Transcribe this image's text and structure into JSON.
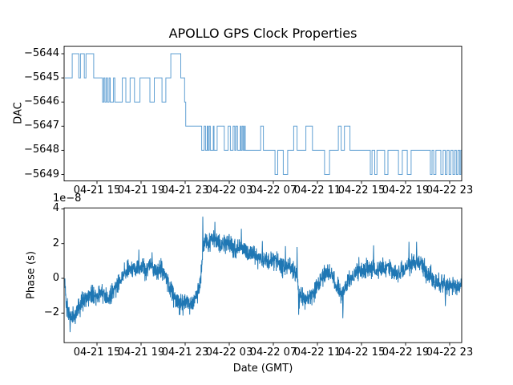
{
  "figure": {
    "background": "#ffffff",
    "frame_color": "#000000",
    "text_color": "#000000"
  },
  "chart_data": [
    {
      "type": "line",
      "subplot": "top",
      "title": "APOLLO GPS Clock Properties",
      "ylabel": "DAC",
      "drawstyle": "steps-post",
      "line_color": "#61a0d3",
      "ylim": [
        -5649.28,
        -5643.68
      ],
      "yticks": [
        -5644,
        -5645,
        -5646,
        -5647,
        -5648,
        -5649
      ],
      "ytick_labels": [
        "−5644",
        "−5645",
        "−5646",
        "−5647",
        "−5648",
        "−5649"
      ],
      "xtick_labels": [
        "04-21 15",
        "04-21 19",
        "04-21 23",
        "04-22 03",
        "04-22 07",
        "04-22 11",
        "04-22 15",
        "04-22 19",
        "04-22 23"
      ],
      "xtick_hours": [
        3,
        7,
        11,
        15,
        19,
        23,
        27,
        31,
        35
      ],
      "xlim_hours": [
        0.09,
        36.09
      ],
      "steps": [
        [
          0.09,
          -5645
        ],
        [
          0.75,
          -5644
        ],
        [
          1.35,
          -5645
        ],
        [
          1.5,
          -5644
        ],
        [
          1.85,
          -5645
        ],
        [
          2.0,
          -5644
        ],
        [
          2.7,
          -5645
        ],
        [
          3.5,
          -5646
        ],
        [
          3.62,
          -5645
        ],
        [
          3.72,
          -5646
        ],
        [
          3.85,
          -5645
        ],
        [
          3.95,
          -5646
        ],
        [
          4.1,
          -5645
        ],
        [
          4.2,
          -5646
        ],
        [
          4.5,
          -5645
        ],
        [
          4.62,
          -5646
        ],
        [
          5.3,
          -5645
        ],
        [
          5.62,
          -5646
        ],
        [
          6.0,
          -5645
        ],
        [
          6.4,
          -5646
        ],
        [
          6.9,
          -5645
        ],
        [
          7.8,
          -5646
        ],
        [
          8.2,
          -5645
        ],
        [
          8.9,
          -5646
        ],
        [
          9.25,
          -5645
        ],
        [
          9.7,
          -5644
        ],
        [
          10.6,
          -5645
        ],
        [
          10.95,
          -5646
        ],
        [
          11.05,
          -5647
        ],
        [
          12.5,
          -5648
        ],
        [
          12.72,
          -5647
        ],
        [
          12.85,
          -5648
        ],
        [
          13.0,
          -5647
        ],
        [
          13.08,
          -5648
        ],
        [
          13.18,
          -5647
        ],
        [
          13.28,
          -5648
        ],
        [
          13.55,
          -5647
        ],
        [
          13.62,
          -5648
        ],
        [
          13.9,
          -5647
        ],
        [
          14.55,
          -5648
        ],
        [
          14.9,
          -5647
        ],
        [
          15.1,
          -5648
        ],
        [
          15.35,
          -5647
        ],
        [
          15.5,
          -5648
        ],
        [
          15.6,
          -5647
        ],
        [
          15.75,
          -5648
        ],
        [
          16.0,
          -5647
        ],
        [
          16.08,
          -5648
        ],
        [
          16.18,
          -5647
        ],
        [
          16.28,
          -5648
        ],
        [
          16.38,
          -5647
        ],
        [
          16.45,
          -5648
        ],
        [
          17.85,
          -5647
        ],
        [
          18.1,
          -5648
        ],
        [
          19.15,
          -5649
        ],
        [
          19.4,
          -5648
        ],
        [
          19.9,
          -5649
        ],
        [
          20.3,
          -5648
        ],
        [
          20.85,
          -5647
        ],
        [
          21.15,
          -5648
        ],
        [
          21.95,
          -5647
        ],
        [
          22.55,
          -5648
        ],
        [
          23.65,
          -5649
        ],
        [
          24.1,
          -5648
        ],
        [
          24.9,
          -5647
        ],
        [
          25.15,
          -5648
        ],
        [
          25.45,
          -5647
        ],
        [
          25.95,
          -5648
        ],
        [
          27.8,
          -5649
        ],
        [
          27.95,
          -5648
        ],
        [
          28.2,
          -5649
        ],
        [
          28.4,
          -5648
        ],
        [
          29.1,
          -5649
        ],
        [
          29.4,
          -5648
        ],
        [
          30.35,
          -5649
        ],
        [
          30.7,
          -5648
        ],
        [
          31.15,
          -5649
        ],
        [
          31.5,
          -5648
        ],
        [
          33.25,
          -5649
        ],
        [
          33.4,
          -5648
        ],
        [
          33.55,
          -5649
        ],
        [
          33.75,
          -5648
        ],
        [
          34.2,
          -5649
        ],
        [
          34.4,
          -5648
        ],
        [
          34.6,
          -5649
        ],
        [
          34.75,
          -5648
        ],
        [
          34.95,
          -5649
        ],
        [
          35.1,
          -5648
        ],
        [
          35.3,
          -5649
        ],
        [
          35.45,
          -5648
        ],
        [
          35.6,
          -5649
        ],
        [
          35.75,
          -5648
        ],
        [
          35.9,
          -5649
        ],
        [
          36.0,
          -5648
        ]
      ]
    },
    {
      "type": "line",
      "subplot": "bottom",
      "ylabel": "Phase (s)",
      "xlabel": "Date (GMT)",
      "offset_text": "1e−8",
      "line_color": "#1f77b4",
      "ylim": [
        -3.7,
        4.06
      ],
      "yticks": [
        4,
        2,
        0,
        -2
      ],
      "ytick_labels": [
        "4",
        "2",
        "0",
        "−2"
      ],
      "xtick_labels": [
        "04-21 15",
        "04-21 19",
        "04-21 23",
        "04-22 03",
        "04-22 07",
        "04-22 11",
        "04-22 15",
        "04-22 19",
        "04-22 23"
      ],
      "xtick_hours": [
        3,
        7,
        11,
        15,
        19,
        23,
        27,
        31,
        35
      ],
      "xlim_hours": [
        0.09,
        36.09
      ],
      "units": "1e-8 s",
      "noise_amplitude": 0.27,
      "mean_points": [
        [
          0.09,
          -0.25
        ],
        [
          0.2,
          -1.5
        ],
        [
          0.45,
          -2.0
        ],
        [
          0.6,
          -2.2
        ],
        [
          0.8,
          -2.1
        ],
        [
          1.0,
          -2.2
        ],
        [
          1.2,
          -1.8
        ],
        [
          1.5,
          -1.45
        ],
        [
          1.8,
          -1.2
        ],
        [
          2.1,
          -1.1
        ],
        [
          2.4,
          -0.95
        ],
        [
          2.7,
          -1.0
        ],
        [
          3.0,
          -1.05
        ],
        [
          3.3,
          -0.7
        ],
        [
          3.6,
          -0.95
        ],
        [
          3.9,
          -1.2
        ],
        [
          4.2,
          -1.05
        ],
        [
          4.5,
          -0.7
        ],
        [
          4.8,
          -0.4
        ],
        [
          5.1,
          -0.05
        ],
        [
          5.4,
          0.25
        ],
        [
          5.7,
          0.45
        ],
        [
          6.0,
          0.5
        ],
        [
          6.3,
          0.45
        ],
        [
          6.6,
          0.55
        ],
        [
          6.9,
          0.5
        ],
        [
          7.2,
          0.55
        ],
        [
          7.5,
          0.45
        ],
        [
          7.8,
          0.65
        ],
        [
          8.1,
          0.55
        ],
        [
          8.4,
          0.45
        ],
        [
          8.7,
          0.55
        ],
        [
          9.0,
          0.35
        ],
        [
          9.3,
          0.0
        ],
        [
          9.6,
          -0.5
        ],
        [
          9.9,
          -0.95
        ],
        [
          10.2,
          -1.3
        ],
        [
          10.5,
          -1.45
        ],
        [
          10.8,
          -1.4
        ],
        [
          11.1,
          -1.35
        ],
        [
          11.4,
          -1.5
        ],
        [
          11.7,
          -1.35
        ],
        [
          12.0,
          -1.15
        ],
        [
          12.2,
          -0.8
        ],
        [
          12.4,
          -0.15
        ],
        [
          12.55,
          1.0
        ],
        [
          12.7,
          2.1
        ],
        [
          12.9,
          2.25
        ],
        [
          13.1,
          2.0
        ],
        [
          13.3,
          2.2
        ],
        [
          13.5,
          2.25
        ],
        [
          13.7,
          2.35
        ],
        [
          13.9,
          2.15
        ],
        [
          14.1,
          2.0
        ],
        [
          14.4,
          1.9
        ],
        [
          14.7,
          2.1
        ],
        [
          15.0,
          2.0
        ],
        [
          15.3,
          1.85
        ],
        [
          15.6,
          1.7
        ],
        [
          15.9,
          1.85
        ],
        [
          16.2,
          1.7
        ],
        [
          16.5,
          1.55
        ],
        [
          16.8,
          1.4
        ],
        [
          17.1,
          1.5
        ],
        [
          17.4,
          1.3
        ],
        [
          17.7,
          1.15
        ],
        [
          18.0,
          1.0
        ],
        [
          18.3,
          1.1
        ],
        [
          18.6,
          0.95
        ],
        [
          18.9,
          1.0
        ],
        [
          19.2,
          1.05
        ],
        [
          19.5,
          0.85
        ],
        [
          19.8,
          0.7
        ],
        [
          20.1,
          0.65
        ],
        [
          20.4,
          0.75
        ],
        [
          20.7,
          0.55
        ],
        [
          21.0,
          0.4
        ],
        [
          21.2,
          0.0
        ],
        [
          21.35,
          -1.2
        ],
        [
          21.5,
          -1.0
        ],
        [
          21.7,
          -1.1
        ],
        [
          21.9,
          -1.25
        ],
        [
          22.1,
          -1.15
        ],
        [
          22.3,
          -1.3
        ],
        [
          22.5,
          -1.0
        ],
        [
          22.7,
          -0.85
        ],
        [
          22.9,
          -0.6
        ],
        [
          23.1,
          -0.4
        ],
        [
          23.3,
          -0.15
        ],
        [
          23.5,
          0.1
        ],
        [
          23.7,
          0.3
        ],
        [
          23.9,
          0.4
        ],
        [
          24.1,
          0.35
        ],
        [
          24.3,
          0.15
        ],
        [
          24.5,
          -0.1
        ],
        [
          24.7,
          -0.4
        ],
        [
          24.9,
          -0.6
        ],
        [
          25.1,
          -0.8
        ],
        [
          25.3,
          -0.9
        ],
        [
          25.5,
          -0.6
        ],
        [
          25.7,
          -0.3
        ],
        [
          25.9,
          -0.1
        ],
        [
          26.1,
          0.05
        ],
        [
          26.3,
          0.2
        ],
        [
          26.5,
          0.3
        ],
        [
          26.7,
          0.45
        ],
        [
          26.9,
          0.5
        ],
        [
          27.1,
          0.4
        ],
        [
          27.3,
          0.5
        ],
        [
          27.5,
          0.55
        ],
        [
          27.7,
          0.6
        ],
        [
          27.9,
          0.5
        ],
        [
          28.1,
          0.55
        ],
        [
          28.3,
          0.45
        ],
        [
          28.6,
          0.55
        ],
        [
          28.9,
          0.6
        ],
        [
          29.2,
          0.5
        ],
        [
          29.5,
          0.65
        ],
        [
          29.8,
          0.55
        ],
        [
          30.1,
          0.45
        ],
        [
          30.4,
          0.35
        ],
        [
          30.7,
          0.5
        ],
        [
          31.0,
          0.65
        ],
        [
          31.3,
          0.75
        ],
        [
          31.6,
          0.85
        ],
        [
          31.9,
          0.95
        ],
        [
          32.2,
          0.85
        ],
        [
          32.5,
          0.65
        ],
        [
          32.8,
          0.45
        ],
        [
          33.1,
          0.2
        ],
        [
          33.4,
          -0.1
        ],
        [
          33.7,
          -0.3
        ],
        [
          34.0,
          -0.4
        ],
        [
          34.3,
          -0.25
        ],
        [
          34.6,
          -0.45
        ],
        [
          34.9,
          -0.4
        ],
        [
          35.2,
          -0.35
        ],
        [
          35.5,
          -0.5
        ],
        [
          35.8,
          -0.45
        ],
        [
          36.0,
          -0.3
        ],
        [
          36.2,
          -0.15
        ],
        [
          36.3,
          1.1
        ]
      ],
      "spikes": [
        [
          0.55,
          -3.1
        ],
        [
          6.8,
          1.65
        ],
        [
          8.0,
          1.5
        ],
        [
          10.8,
          -2.15
        ],
        [
          12.6,
          3.55
        ],
        [
          13.7,
          3.25
        ],
        [
          16.1,
          2.85
        ],
        [
          18.0,
          2.15
        ],
        [
          20.1,
          1.85
        ],
        [
          21.15,
          1.8
        ],
        [
          21.3,
          -2.1
        ],
        [
          25.3,
          -2.3
        ],
        [
          28.1,
          1.9
        ],
        [
          31.3,
          2.1
        ],
        [
          32.0,
          2.1
        ],
        [
          34.6,
          -1.6
        ]
      ]
    }
  ]
}
